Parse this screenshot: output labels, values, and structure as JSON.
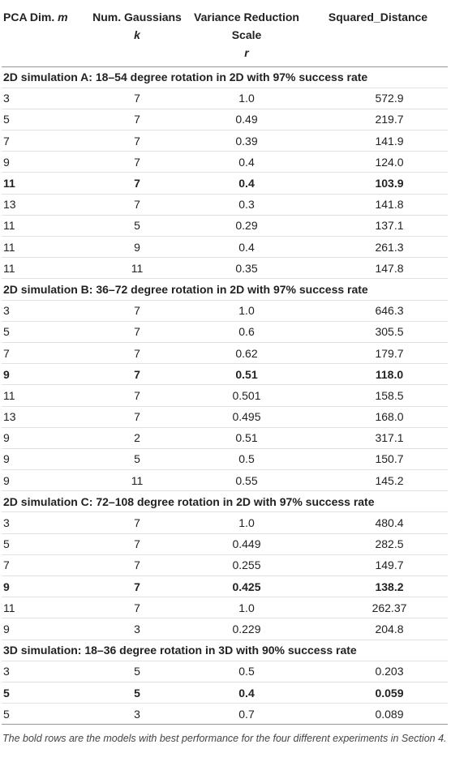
{
  "table": {
    "columns": [
      {
        "text": "PCA Dim.",
        "symbol": "m"
      },
      {
        "text": "Num. Gaussians",
        "symbol": "k"
      },
      {
        "text": "Variance Reduction Scale",
        "symbol": "r"
      },
      {
        "text": "Squared_Distance"
      }
    ],
    "sections": [
      {
        "title": "2D simulation A: 18–54 degree rotation in 2D with 97% success rate",
        "rows": [
          {
            "cells": [
              "3",
              "7",
              "1.0",
              "572.9"
            ]
          },
          {
            "cells": [
              "5",
              "7",
              "0.49",
              "219.7"
            ]
          },
          {
            "cells": [
              "7",
              "7",
              "0.39",
              "141.9"
            ]
          },
          {
            "cells": [
              "9",
              "7",
              "0.4",
              "124.0"
            ]
          },
          {
            "cells": [
              "11",
              "7",
              "0.4",
              "103.9"
            ],
            "bold": true
          },
          {
            "cells": [
              "13",
              "7",
              "0.3",
              "141.8"
            ]
          },
          {
            "cells": [
              "11",
              "5",
              "0.29",
              "137.1"
            ]
          },
          {
            "cells": [
              "11",
              "9",
              "0.4",
              "261.3"
            ]
          },
          {
            "cells": [
              "11",
              "11",
              "0.35",
              "147.8"
            ]
          }
        ]
      },
      {
        "title": "2D simulation B: 36–72 degree rotation in 2D with 97% success rate",
        "rows": [
          {
            "cells": [
              "3",
              "7",
              "1.0",
              "646.3"
            ]
          },
          {
            "cells": [
              "5",
              "7",
              "0.6",
              "305.5"
            ]
          },
          {
            "cells": [
              "7",
              "7",
              "0.62",
              "179.7"
            ]
          },
          {
            "cells": [
              "9",
              "7",
              "0.51",
              "118.0"
            ],
            "bold": true
          },
          {
            "cells": [
              "11",
              "7",
              "0.501",
              "158.5"
            ]
          },
          {
            "cells": [
              "13",
              "7",
              "0.495",
              "168.0"
            ]
          },
          {
            "cells": [
              "9",
              "2",
              "0.51",
              "317.1"
            ]
          },
          {
            "cells": [
              "9",
              "5",
              "0.5",
              "150.7"
            ]
          },
          {
            "cells": [
              "9",
              "11",
              "0.55",
              "145.2"
            ]
          }
        ]
      },
      {
        "title": "2D simulation C: 72–108 degree rotation in 2D with 97% success rate",
        "rows": [
          {
            "cells": [
              "3",
              "7",
              "1.0",
              "480.4"
            ]
          },
          {
            "cells": [
              "5",
              "7",
              "0.449",
              "282.5"
            ]
          },
          {
            "cells": [
              "7",
              "7",
              "0.255",
              "149.7"
            ]
          },
          {
            "cells": [
              "9",
              "7",
              "0.425",
              "138.2"
            ],
            "bold": true
          },
          {
            "cells": [
              "11",
              "7",
              "1.0",
              "262.37"
            ]
          },
          {
            "cells": [
              "9",
              "3",
              "0.229",
              "204.8"
            ]
          }
        ]
      },
      {
        "title": "3D simulation: 18–36 degree rotation in 3D with 90% success rate",
        "rows": [
          {
            "cells": [
              "3",
              "5",
              "0.5",
              "0.203"
            ]
          },
          {
            "cells": [
              "5",
              "5",
              "0.4",
              "0.059"
            ],
            "bold": true
          },
          {
            "cells": [
              "5",
              "3",
              "0.7",
              "0.089"
            ]
          }
        ]
      }
    ]
  },
  "footnote": "The bold rows are the models with best performance for the four different experiments in Section 4."
}
